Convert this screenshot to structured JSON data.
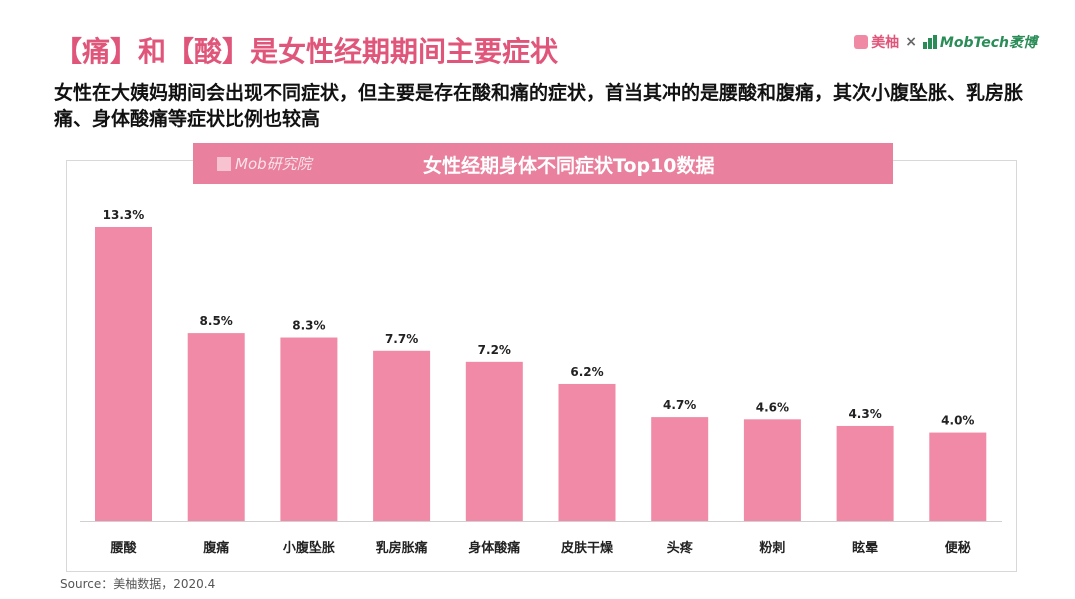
{
  "header": {
    "title": "【痛】和【酸】是女性经期期间主要症状",
    "subtitle": "女性在大姨妈期间会出现不同症状，但主要是存在酸和痛的症状，首当其冲的是腰酸和腹痛，其次小腹坠胀、乳房胀痛、身体酸痛等症状比例也较高"
  },
  "logos": {
    "meiyou": "美柚",
    "separator": "×",
    "mobtech": "MobTech袤博"
  },
  "banner": {
    "logo_text": "Mob研究院",
    "chart_title": "女性经期身体不同症状Top10数据"
  },
  "chart_data": {
    "type": "bar",
    "title": "女性经期身体不同症状Top10数据",
    "categories": [
      "腰酸",
      "腹痛",
      "小腹坠胀",
      "乳房胀痛",
      "身体酸痛",
      "皮肤干燥",
      "头疼",
      "粉刺",
      "眩晕",
      "便秘"
    ],
    "values": [
      13.3,
      8.5,
      8.3,
      7.7,
      7.2,
      6.2,
      4.7,
      4.6,
      4.3,
      4.0
    ],
    "labels": [
      "13.3%",
      "8.5%",
      "8.3%",
      "7.7%",
      "7.2%",
      "6.2%",
      "4.7%",
      "4.6%",
      "4.3%",
      "4.0%"
    ],
    "ylim": [
      0,
      13.3
    ],
    "grid": false,
    "legend": "none",
    "bar_color": "#f08aa6"
  },
  "source": "Source：美柚数据，2020.4"
}
